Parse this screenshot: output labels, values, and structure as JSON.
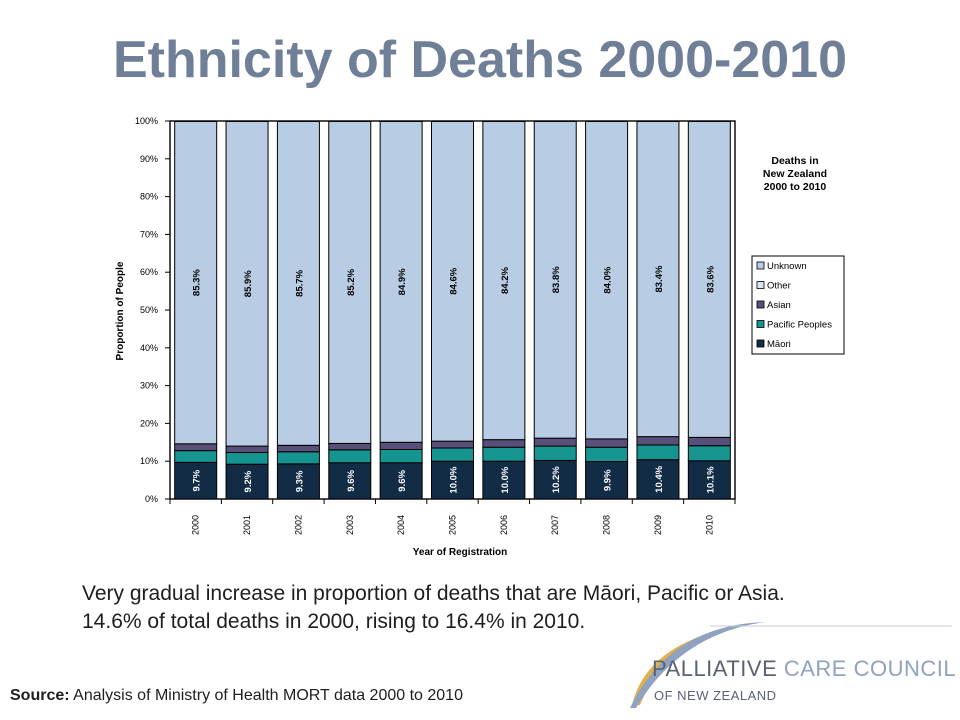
{
  "slide": {
    "title": "Ethnicity of Deaths 2000-2010",
    "caption_line1": "Very gradual increase in proportion of deaths that are Māori, Pacific or Asia.",
    "caption_line2": "14.6% of total deaths in 2000, rising to 16.4% in 2010.",
    "source_label": "Source:",
    "source_text": " Analysis of Ministry of Health MORT data 2000 to 2010"
  },
  "logo": {
    "name_main": "PALLIATIVE",
    "name_rest": " CARE COUNCIL",
    "subtitle": "OF NEW ZEALAND",
    "color_dark": "#5a6275",
    "color_accent": "#8fa2bf",
    "color_gold": "#e2b04a"
  },
  "chart_data": {
    "type": "bar",
    "stacked": true,
    "normalized": true,
    "title": "Deaths in New Zealand 2000 to 2010",
    "title_lines": [
      "Deaths in",
      "New Zealand",
      "2000 to 2010"
    ],
    "xlabel": "Year of Registration",
    "ylabel": "Proportion of People",
    "ylim": [
      0,
      100
    ],
    "yticks": [
      0,
      10,
      20,
      30,
      40,
      50,
      60,
      70,
      80,
      90,
      100
    ],
    "ytick_labels": [
      "0%",
      "10%",
      "20%",
      "30%",
      "40%",
      "50%",
      "60%",
      "70%",
      "80%",
      "90%",
      "100%"
    ],
    "categories": [
      "2000",
      "2001",
      "2002",
      "2003",
      "2004",
      "2005",
      "2006",
      "2007",
      "2008",
      "2009",
      "2010"
    ],
    "series": [
      {
        "name": "Māori",
        "color": "#132c45",
        "values": [
          9.7,
          9.2,
          9.3,
          9.6,
          9.6,
          10.0,
          10.0,
          10.2,
          9.9,
          10.4,
          10.1
        ],
        "labels": [
          "9.7%",
          "9.2%",
          "9.3%",
          "9.6%",
          "9.6%",
          "10.0%",
          "10.0%",
          "10.2%",
          "9.9%",
          "10.4%",
          "10.1%"
        ]
      },
      {
        "name": "Pacific Peoples",
        "color": "#16948f",
        "values": [
          3.1,
          3.1,
          3.2,
          3.4,
          3.5,
          3.5,
          3.7,
          3.8,
          3.8,
          3.9,
          4.0
        ]
      },
      {
        "name": "Asian",
        "color": "#58507a",
        "values": [
          1.8,
          1.7,
          1.7,
          1.7,
          1.9,
          1.8,
          2.0,
          2.1,
          2.2,
          2.2,
          2.2
        ]
      },
      {
        "name": "Other",
        "color": "#b8cce4",
        "values": [
          85.3,
          85.9,
          85.7,
          85.2,
          84.9,
          84.6,
          84.2,
          83.8,
          84.0,
          83.4,
          83.6
        ],
        "labels": [
          "85.3%",
          "85.9%",
          "85.7%",
          "85.2%",
          "84.9%",
          "84.6%",
          "84.2%",
          "83.8%",
          "84.0%",
          "83.4%",
          "83.6%"
        ]
      },
      {
        "name": "Unknown",
        "color": "#b8cce4",
        "values": [
          0.1,
          0.1,
          0.1,
          0.1,
          0.1,
          0.1,
          0.1,
          0.1,
          0.1,
          0.1,
          0.1
        ]
      }
    ],
    "legend": {
      "placement": "right",
      "entries": [
        {
          "name": "Unknown",
          "color": "#b8cce4"
        },
        {
          "name": "Other",
          "color": "#dbe5f1"
        },
        {
          "name": "Asian",
          "color": "#58507a"
        },
        {
          "name": "Pacific Peoples",
          "color": "#16948f"
        },
        {
          "name": "Māori",
          "color": "#132c45"
        }
      ]
    },
    "grid": false
  }
}
